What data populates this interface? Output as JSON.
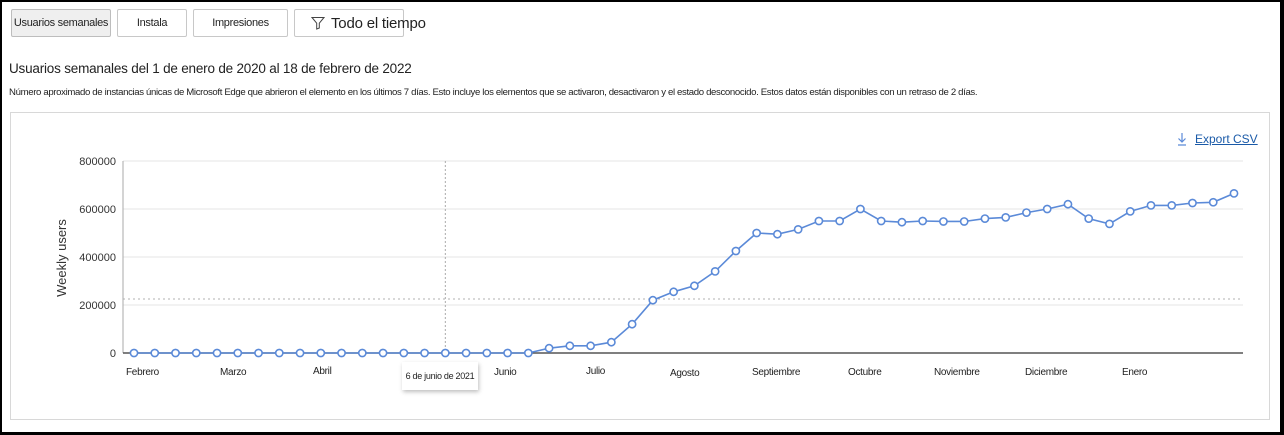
{
  "tabs": [
    {
      "label": "Usuarios semanales",
      "active": true
    },
    {
      "label": "Instala",
      "active": false
    },
    {
      "label": "Impresiones",
      "active": false
    }
  ],
  "time_filter": {
    "label": "Todo el tiempo",
    "icon": "filter-icon"
  },
  "header": {
    "title": "Usuarios semanales del 1 de enero de 2020 al 18 de febrero de 2022",
    "description": "Número aproximado de instancias únicas de Microsoft Edge que abrieron el elemento en los últimos 7 días. Esto incluye los elementos que se activaron, desactivaron y el estado desconocido. Estos datos están disponibles con un retraso de 2 días."
  },
  "export": {
    "label": "Export CSV",
    "icon": "download-icon"
  },
  "tooltip": {
    "label": "6 de junio de 2021"
  },
  "colors": {
    "line": "#5b8ad8",
    "grid": "#e6e6e6",
    "axis": "#555555",
    "reference": "#b0b0b0"
  },
  "chart_data": {
    "type": "line",
    "title": "",
    "xlabel": "",
    "ylabel": "Weekly users",
    "ylim": [
      0,
      800000
    ],
    "yticks": [
      "0",
      "200000",
      "400000",
      "600000",
      "800000"
    ],
    "month_labels": [
      "Febrero",
      "Marzo",
      "Abril",
      "Junio",
      "Julio",
      "Agosto",
      "Septiembre",
      "Octubre",
      "Noviembre",
      "Diciembre",
      "Enero"
    ],
    "grid": true,
    "reference_line": {
      "value": 225000,
      "style": "dotted"
    },
    "hover_index": 15,
    "series": [
      {
        "name": "Weekly users",
        "values": [
          0,
          0,
          0,
          0,
          0,
          0,
          0,
          0,
          0,
          0,
          0,
          0,
          0,
          0,
          0,
          0,
          0,
          0,
          0,
          0,
          20000,
          30000,
          30000,
          45000,
          120000,
          220000,
          255000,
          280000,
          340000,
          425000,
          500000,
          495000,
          515000,
          550000,
          550000,
          600000,
          550000,
          545000,
          550000,
          548000,
          548000,
          560000,
          565000,
          585000,
          600000,
          620000,
          560000,
          538000,
          590000,
          615000,
          615000,
          625000,
          628000,
          665000
        ]
      }
    ]
  }
}
